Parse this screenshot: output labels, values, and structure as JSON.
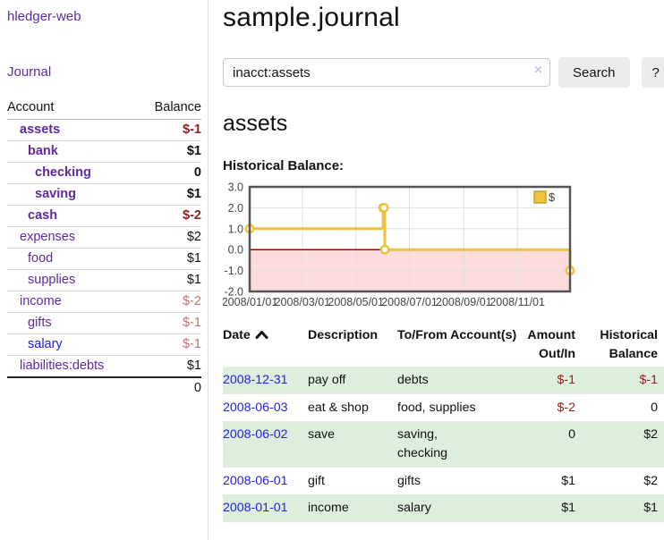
{
  "app_title": "hledger-web",
  "sidebar": {
    "journal_link": "Journal",
    "accounts": {
      "header_account": "Account",
      "header_balance": "Balance",
      "rows": [
        {
          "name": "assets",
          "balance": "$-1",
          "depth": 1,
          "emph": true,
          "negative": true
        },
        {
          "name": "bank",
          "balance": "$1",
          "depth": 2,
          "emph": true,
          "negative": false
        },
        {
          "name": "checking",
          "balance": "0",
          "depth": 3,
          "emph": true,
          "negative": false
        },
        {
          "name": "saving",
          "balance": "$1",
          "depth": 3,
          "emph": true,
          "negative": false
        },
        {
          "name": "cash",
          "balance": "$-2",
          "depth": 2,
          "emph": true,
          "negative": true
        },
        {
          "name": "expenses",
          "balance": "$2",
          "depth": 1,
          "emph": false,
          "negative": false
        },
        {
          "name": "food",
          "balance": "$1",
          "depth": 2,
          "emph": false,
          "negative": false
        },
        {
          "name": "supplies",
          "balance": "$1",
          "depth": 2,
          "emph": false,
          "negative": false
        },
        {
          "name": "income",
          "balance": "$-2",
          "depth": 1,
          "emph": false,
          "negative": true
        },
        {
          "name": "gifts",
          "balance": "$-1",
          "depth": 2,
          "emph": false,
          "negative": true
        },
        {
          "name": "salary",
          "balance": "$-1",
          "depth": 2,
          "emph": false,
          "negative": true,
          "link_style": "blue"
        },
        {
          "name": "liabilities:debts",
          "balance": "$1",
          "depth": 1,
          "emph": false,
          "negative": false
        }
      ],
      "total": "0"
    }
  },
  "main": {
    "title": "sample.journal",
    "search": {
      "value": "inacct:assets",
      "clear_icon": "×",
      "search_label": "Search",
      "help_label": "?"
    },
    "heading": "assets",
    "chart_title": "Historical Balance:"
  },
  "chart_data": {
    "type": "line",
    "style": "steps",
    "title": "Historical Balance",
    "series": [
      {
        "name": "$",
        "color": "#edc240",
        "points": [
          [
            "2008-01-01",
            1
          ],
          [
            "2008-06-01",
            2
          ],
          [
            "2008-06-02",
            2
          ],
          [
            "2008-06-03",
            0
          ],
          [
            "2008-12-31",
            -1
          ]
        ]
      }
    ],
    "x_range": [
      "2008-01-01",
      "2008-12-31"
    ],
    "y_range": [
      -2,
      3
    ],
    "ytick_labels": [
      "3.0",
      "2.0",
      "1.0",
      "0.0",
      "-1.0",
      "-2.0"
    ],
    "xtick_labels": [
      "2008/01/01",
      "2008/03/01",
      "2008/05/01",
      "2008/07/01",
      "2008/09/01",
      "2008/11/01"
    ],
    "legend": {
      "label": "$",
      "position": "top-right"
    },
    "grid": true,
    "negative_region_color": "#fcdcdc",
    "zero_line_color": "#990000",
    "plot_border_color": "#545454",
    "grid_color": "#e0e0e0"
  },
  "register": {
    "headers": {
      "date": "Date",
      "description": "Description",
      "tofrom": "To/From Account(s)",
      "amount": "Amount Out/In",
      "balance": "Historical Balance"
    },
    "rows": [
      {
        "date": "2008-12-31",
        "description": "pay off",
        "accounts": "debts",
        "amount": "$-1",
        "balance": "$-1"
      },
      {
        "date": "2008-06-03",
        "description": "eat & shop",
        "accounts": "food, supplies",
        "amount": "$-2",
        "balance": "0"
      },
      {
        "date": "2008-06-02",
        "description": "save",
        "accounts": "saving, checking",
        "amount": "0",
        "balance": "$2"
      },
      {
        "date": "2008-06-01",
        "description": "gift",
        "accounts": "gifts",
        "amount": "$1",
        "balance": "$2"
      },
      {
        "date": "2008-01-01",
        "description": "income",
        "accounts": "salary",
        "amount": "$1",
        "balance": "$1"
      }
    ]
  },
  "colors": {
    "link_purple": "#5f2aa0",
    "link_blue": "#2222dd",
    "negative_strong": "#8f2020",
    "negative_soft": "#c17373",
    "row_stripe_green": "#ddeedd",
    "chart_gold": "#edc240"
  }
}
